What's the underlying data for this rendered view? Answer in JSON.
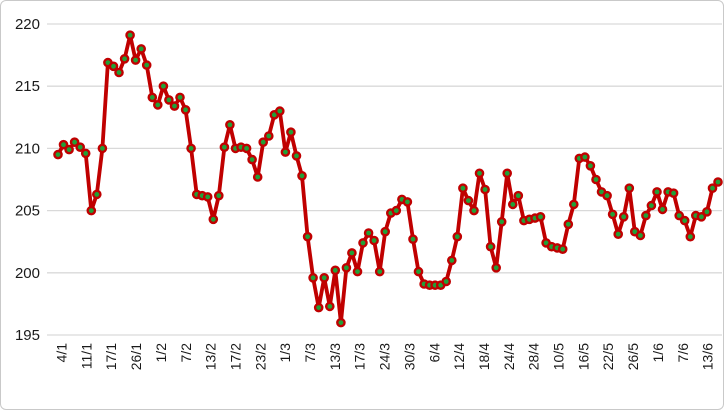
{
  "chart_data": {
    "type": "line",
    "title": "",
    "xlabel": "",
    "ylabel": "",
    "legend": "none",
    "grid": "horizontal",
    "ylim": [
      195,
      220
    ],
    "y_ticks": [
      220,
      215,
      210,
      205,
      200,
      195
    ],
    "x_tick_labels": [
      "4/1",
      "11/1",
      "17/1",
      "26/1",
      "1/2",
      "7/2",
      "13/2",
      "17/2",
      "23/2",
      "1/3",
      "7/3",
      "13/3",
      "17/3",
      "24/3",
      "30/3",
      "6/4",
      "12/4",
      "18/4",
      "24/4",
      "28/4",
      "10/5",
      "16/5",
      "22/5",
      "26/5",
      "1/6",
      "7/6",
      "13/6"
    ],
    "values": [
      209.5,
      210.3,
      209.9,
      210.5,
      210.1,
      209.6,
      205.0,
      206.3,
      210.0,
      216.9,
      216.6,
      216.1,
      217.2,
      219.1,
      217.1,
      218.0,
      216.7,
      214.1,
      213.5,
      215.0,
      213.9,
      213.4,
      214.1,
      213.1,
      210.0,
      206.3,
      206.2,
      206.1,
      204.3,
      206.2,
      210.1,
      211.9,
      210.0,
      210.1,
      210.0,
      209.1,
      207.7,
      210.5,
      211.0,
      212.7,
      213.0,
      209.7,
      211.3,
      209.4,
      207.8,
      202.9,
      199.6,
      197.2,
      199.6,
      197.3,
      200.2,
      196.0,
      200.4,
      201.6,
      200.1,
      202.4,
      203.2,
      202.6,
      200.1,
      203.3,
      204.8,
      205.0,
      205.9,
      205.7,
      202.7,
      200.1,
      199.1,
      199.0,
      199.0,
      199.0,
      199.3,
      201.0,
      202.9,
      206.8,
      205.8,
      205.0,
      208.0,
      206.7,
      202.1,
      200.4,
      204.1,
      208.0,
      205.5,
      206.2,
      204.2,
      204.3,
      204.4,
      204.5,
      202.4,
      202.1,
      202.0,
      201.9,
      203.9,
      205.5,
      209.2,
      209.3,
      208.6,
      207.5,
      206.5,
      206.2,
      204.7,
      203.1,
      204.5,
      206.8,
      203.3,
      203.0,
      204.6,
      205.4,
      206.5,
      205.1,
      206.5,
      206.4,
      204.6,
      204.2,
      202.9,
      204.6,
      204.5,
      204.9,
      206.8,
      207.3
    ],
    "colors": {
      "line": "#c00000",
      "marker_fill": "#21a038",
      "marker_border": "#c00000",
      "gridline": "#d9d9d9",
      "axis_text": "#1a1a1a",
      "background": "#ffffff",
      "frame_border": "#c9c9c9"
    }
  }
}
